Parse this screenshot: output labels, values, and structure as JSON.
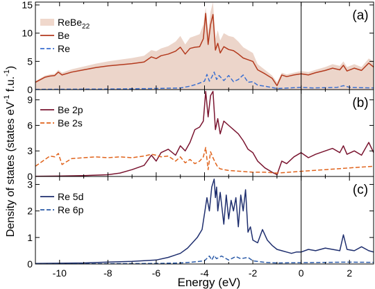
{
  "figure": {
    "xlabel": "Energy (eV)",
    "ylabel_main": "Density of states (states eV",
    "ylabel_exp1": "-1",
    "ylabel_mid": " f.u.",
    "ylabel_exp2": "-1",
    "ylabel_end": ")",
    "x_ticks": [
      "-10",
      "-8",
      "-6",
      "-4",
      "-2",
      "0",
      "2"
    ]
  },
  "chart_data": [
    {
      "type": "line",
      "panel": "(a)",
      "xlim": [
        -11,
        3
      ],
      "ylim": [
        0,
        15.5
      ],
      "y_ticks": [
        0,
        5,
        10,
        15
      ],
      "fermi_line_x": 0,
      "legend": [
        {
          "label": "ReBe",
          "sub": "22",
          "style": "fill",
          "color": "#f0d8cc"
        },
        {
          "label": "Be",
          "style": "solid",
          "color": "#b33a1e"
        },
        {
          "label": "Re",
          "style": "dashed",
          "color": "#3a6fd0"
        }
      ],
      "series": [
        {
          "name": "ReBe22",
          "style": "fill",
          "color": "#ecd5ca",
          "x": [
            -11,
            -10.6,
            -10.4,
            -10.2,
            -10.05,
            -9.9,
            -9.5,
            -9,
            -8.5,
            -8,
            -7.5,
            -7,
            -6.5,
            -6.2,
            -6,
            -5.8,
            -5.5,
            -5.2,
            -5,
            -4.8,
            -4.6,
            -4.4,
            -4.2,
            -4.05,
            -3.95,
            -3.85,
            -3.75,
            -3.65,
            -3.55,
            -3.45,
            -3.35,
            -3.2,
            -3,
            -2.8,
            -2.6,
            -2.4,
            -2.2,
            -2,
            -1.8,
            -1.5,
            -1.2,
            -1,
            -0.8,
            -0.6,
            -0.3,
            0,
            0.3,
            0.6,
            1,
            1.3,
            1.6,
            1.75,
            1.9,
            2.2,
            2.5,
            2.8,
            3
          ],
          "y": [
            1.5,
            2.5,
            2.7,
            2.8,
            3.5,
            3.0,
            3.6,
            4.1,
            4.6,
            5.0,
            5.3,
            5.6,
            6.0,
            7.0,
            6.8,
            7.3,
            7.7,
            8.5,
            9.5,
            8.0,
            9.2,
            9.5,
            9.8,
            11.5,
            14.6,
            10.0,
            13.8,
            15.5,
            9.0,
            10.5,
            8.7,
            10.0,
            9.5,
            9.3,
            8.5,
            7.5,
            7.0,
            6.5,
            4.5,
            3.5,
            2.5,
            1.3,
            3.0,
            2.7,
            3.0,
            3.3,
            3.1,
            3.5,
            4.0,
            4.5,
            4.2,
            5.0,
            4.0,
            4.5,
            4.0,
            5.5,
            5.0
          ]
        },
        {
          "name": "Be",
          "style": "solid",
          "color": "#b33a1e",
          "x": [
            -11,
            -10.6,
            -10.4,
            -10.2,
            -10.05,
            -9.9,
            -9.5,
            -9,
            -8.5,
            -8,
            -7.5,
            -7,
            -6.5,
            -6.2,
            -6,
            -5.8,
            -5.5,
            -5.2,
            -5,
            -4.8,
            -4.6,
            -4.4,
            -4.2,
            -4.05,
            -3.95,
            -3.85,
            -3.75,
            -3.65,
            -3.55,
            -3.45,
            -3.35,
            -3.2,
            -3,
            -2.8,
            -2.6,
            -2.4,
            -2.2,
            -2,
            -1.8,
            -1.5,
            -1.2,
            -1,
            -0.8,
            -0.6,
            -0.3,
            0,
            0.3,
            0.6,
            1,
            1.3,
            1.6,
            1.75,
            1.9,
            2.2,
            2.5,
            2.8,
            3
          ],
          "y": [
            1.3,
            2.2,
            2.4,
            2.5,
            3.1,
            2.6,
            3.1,
            3.5,
            3.9,
            4.2,
            4.4,
            4.6,
            4.9,
            5.8,
            5.5,
            6.0,
            6.3,
            6.8,
            7.5,
            6.3,
            7.3,
            7.5,
            7.6,
            9.0,
            13.5,
            8.0,
            11.5,
            13.3,
            7.0,
            8.2,
            6.5,
            7.6,
            7.1,
            6.9,
            6.3,
            5.6,
            5.3,
            5.0,
            3.5,
            2.8,
            2.0,
            0.7,
            2.6,
            2.3,
            2.6,
            2.8,
            2.6,
            3.0,
            3.4,
            3.8,
            3.5,
            4.3,
            3.3,
            3.8,
            3.4,
            4.7,
            4.0
          ]
        },
        {
          "name": "Re",
          "style": "dashed",
          "color": "#3a6fd0",
          "x": [
            -11,
            -8,
            -6,
            -5,
            -4.6,
            -4.3,
            -4,
            -3.9,
            -3.8,
            -3.7,
            -3.6,
            -3.5,
            -3.4,
            -3.2,
            -3,
            -2.8,
            -2.6,
            -2.4,
            -2.2,
            -2,
            -1.8,
            -1.5,
            -1,
            -0.5,
            0,
            0.5,
            1,
            1.5,
            1.75,
            2,
            2.5,
            3
          ],
          "y": [
            0.05,
            0.1,
            0.2,
            0.3,
            0.6,
            1.0,
            1.5,
            2.7,
            1.5,
            2.2,
            3.1,
            1.8,
            2.5,
            1.6,
            2.5,
            1.4,
            1.8,
            2.6,
            1.3,
            1.4,
            0.8,
            0.6,
            0.2,
            0.3,
            0.4,
            0.3,
            0.35,
            0.4,
            0.7,
            0.4,
            0.35,
            0.3
          ]
        }
      ]
    },
    {
      "type": "line",
      "panel": "(b)",
      "xlim": [
        -11,
        3
      ],
      "ylim": [
        0,
        10.2
      ],
      "y_ticks": [
        0,
        3,
        6,
        9
      ],
      "fermi_line_x": 0,
      "legend": [
        {
          "label": "Be 2p",
          "style": "solid",
          "color": "#7a1530"
        },
        {
          "label": "Be 2s",
          "style": "dashed",
          "color": "#e0621a"
        }
      ],
      "series": [
        {
          "name": "Be 2p",
          "style": "solid",
          "color": "#7a1530",
          "x": [
            -11,
            -10,
            -9,
            -8,
            -7.5,
            -7,
            -6.5,
            -6.2,
            -6,
            -5.8,
            -5.5,
            -5.2,
            -5,
            -4.8,
            -4.6,
            -4.4,
            -4.2,
            -4.05,
            -3.95,
            -3.85,
            -3.75,
            -3.65,
            -3.55,
            -3.45,
            -3.35,
            -3.2,
            -3,
            -2.8,
            -2.6,
            -2.4,
            -2.2,
            -2,
            -1.8,
            -1.5,
            -1.2,
            -1,
            -0.8,
            -0.6,
            -0.3,
            0,
            0.3,
            0.6,
            1,
            1.3,
            1.6,
            1.75,
            1.9,
            2.2,
            2.5,
            2.8,
            3
          ],
          "y": [
            0.02,
            0.05,
            0.1,
            0.2,
            0.4,
            0.8,
            1.3,
            2.5,
            1.8,
            2.8,
            3.2,
            2.5,
            3.6,
            3.0,
            4.0,
            5.5,
            5.8,
            6.5,
            10.0,
            7.0,
            9.5,
            10.0,
            5.5,
            6.8,
            5.0,
            6.5,
            6.0,
            5.5,
            5.0,
            4.2,
            3.2,
            2.8,
            1.8,
            1.0,
            0.5,
            0.2,
            1.8,
            1.5,
            2.3,
            2.8,
            2.2,
            2.6,
            3.0,
            3.3,
            2.8,
            3.6,
            2.6,
            3.0,
            2.5,
            4.0,
            2.8
          ]
        },
        {
          "name": "Be 2s",
          "style": "dashed",
          "color": "#e0621a",
          "x": [
            -11,
            -10.6,
            -10.4,
            -10.2,
            -10.05,
            -9.9,
            -9.5,
            -9,
            -8.5,
            -8,
            -7.5,
            -7,
            -6.5,
            -6.2,
            -6,
            -5.8,
            -5.5,
            -5.2,
            -5,
            -4.8,
            -4.6,
            -4.4,
            -4.2,
            -4.05,
            -3.95,
            -3.85,
            -3.75,
            -3.65,
            -3.55,
            -3.45,
            -3.35,
            -3.2,
            -3,
            -2.5,
            -2,
            -1.5,
            -1,
            -0.5,
            0,
            0.5,
            1,
            1.5,
            2,
            2.5,
            3
          ],
          "y": [
            1.2,
            2.0,
            2.4,
            2.3,
            2.7,
            1.4,
            2.1,
            2.2,
            2.3,
            2.2,
            2.3,
            2.2,
            2.4,
            2.6,
            2.5,
            2.3,
            2.4,
            1.8,
            2.3,
            1.6,
            2.0,
            1.5,
            1.8,
            2.3,
            3.4,
            0.8,
            2.9,
            2.2,
            1.6,
            1.1,
            0.9,
            0.8,
            0.7,
            0.6,
            0.5,
            0.5,
            0.4,
            0.5,
            0.6,
            0.7,
            0.8,
            0.9,
            1.0,
            1.1,
            1.2
          ]
        }
      ]
    },
    {
      "type": "line",
      "panel": "(c)",
      "xlim": [
        -11,
        3
      ],
      "ylim": [
        0,
        3.3
      ],
      "y_ticks": [
        0,
        1,
        2,
        3
      ],
      "fermi_line_x": 0,
      "legend": [
        {
          "label": "Re 5d",
          "style": "solid",
          "color": "#1e2e6e"
        },
        {
          "label": "Re 6p",
          "style": "dashed",
          "color": "#2a5aa8"
        }
      ],
      "series": [
        {
          "name": "Re 5d",
          "style": "solid",
          "color": "#1e2e6e",
          "x": [
            -11,
            -9,
            -8,
            -7,
            -6,
            -5.5,
            -5,
            -4.7,
            -4.5,
            -4.3,
            -4.1,
            -4,
            -3.9,
            -3.8,
            -3.7,
            -3.6,
            -3.55,
            -3.5,
            -3.45,
            -3.35,
            -3.2,
            -3.1,
            -3,
            -2.9,
            -2.8,
            -2.7,
            -2.6,
            -2.5,
            -2.4,
            -2.3,
            -2.2,
            -2.1,
            -2,
            -1.8,
            -1.6,
            -1.4,
            -1.2,
            -1,
            -0.8,
            -0.6,
            -0.4,
            -0.2,
            0,
            0.3,
            0.6,
            1,
            1.3,
            1.6,
            1.75,
            1.9,
            2.2,
            2.5,
            2.8,
            3
          ],
          "y": [
            0.02,
            0.04,
            0.07,
            0.1,
            0.15,
            0.25,
            0.4,
            0.6,
            0.8,
            1.0,
            1.3,
            1.9,
            2.5,
            2.0,
            2.9,
            3.2,
            2.5,
            2.9,
            2.0,
            2.7,
            1.5,
            2.6,
            1.7,
            2.4,
            2.0,
            2.5,
            1.4,
            2.6,
            2.0,
            2.8,
            1.2,
            1.4,
            0.9,
            0.8,
            1.3,
            0.9,
            0.7,
            0.55,
            0.5,
            0.45,
            0.4,
            0.45,
            0.45,
            0.55,
            0.5,
            0.6,
            0.55,
            0.5,
            1.1,
            0.55,
            0.5,
            0.65,
            0.5,
            0.45
          ]
        },
        {
          "name": "Re 6p",
          "style": "dashed",
          "color": "#2a5aa8",
          "x": [
            -11,
            -8,
            -6,
            -5,
            -4.5,
            -4,
            -3.8,
            -3.7,
            -3.6,
            -3.5,
            -3.3,
            -3,
            -2.7,
            -2.5,
            -2.2,
            -2,
            -1.5,
            -1,
            0,
            1,
            2,
            3
          ],
          "y": [
            0.0,
            0.01,
            0.02,
            0.04,
            0.07,
            0.12,
            0.3,
            0.15,
            0.32,
            0.2,
            0.3,
            0.15,
            0.28,
            0.2,
            0.25,
            0.12,
            0.06,
            0.04,
            0.05,
            0.06,
            0.07,
            0.06
          ]
        }
      ]
    }
  ]
}
